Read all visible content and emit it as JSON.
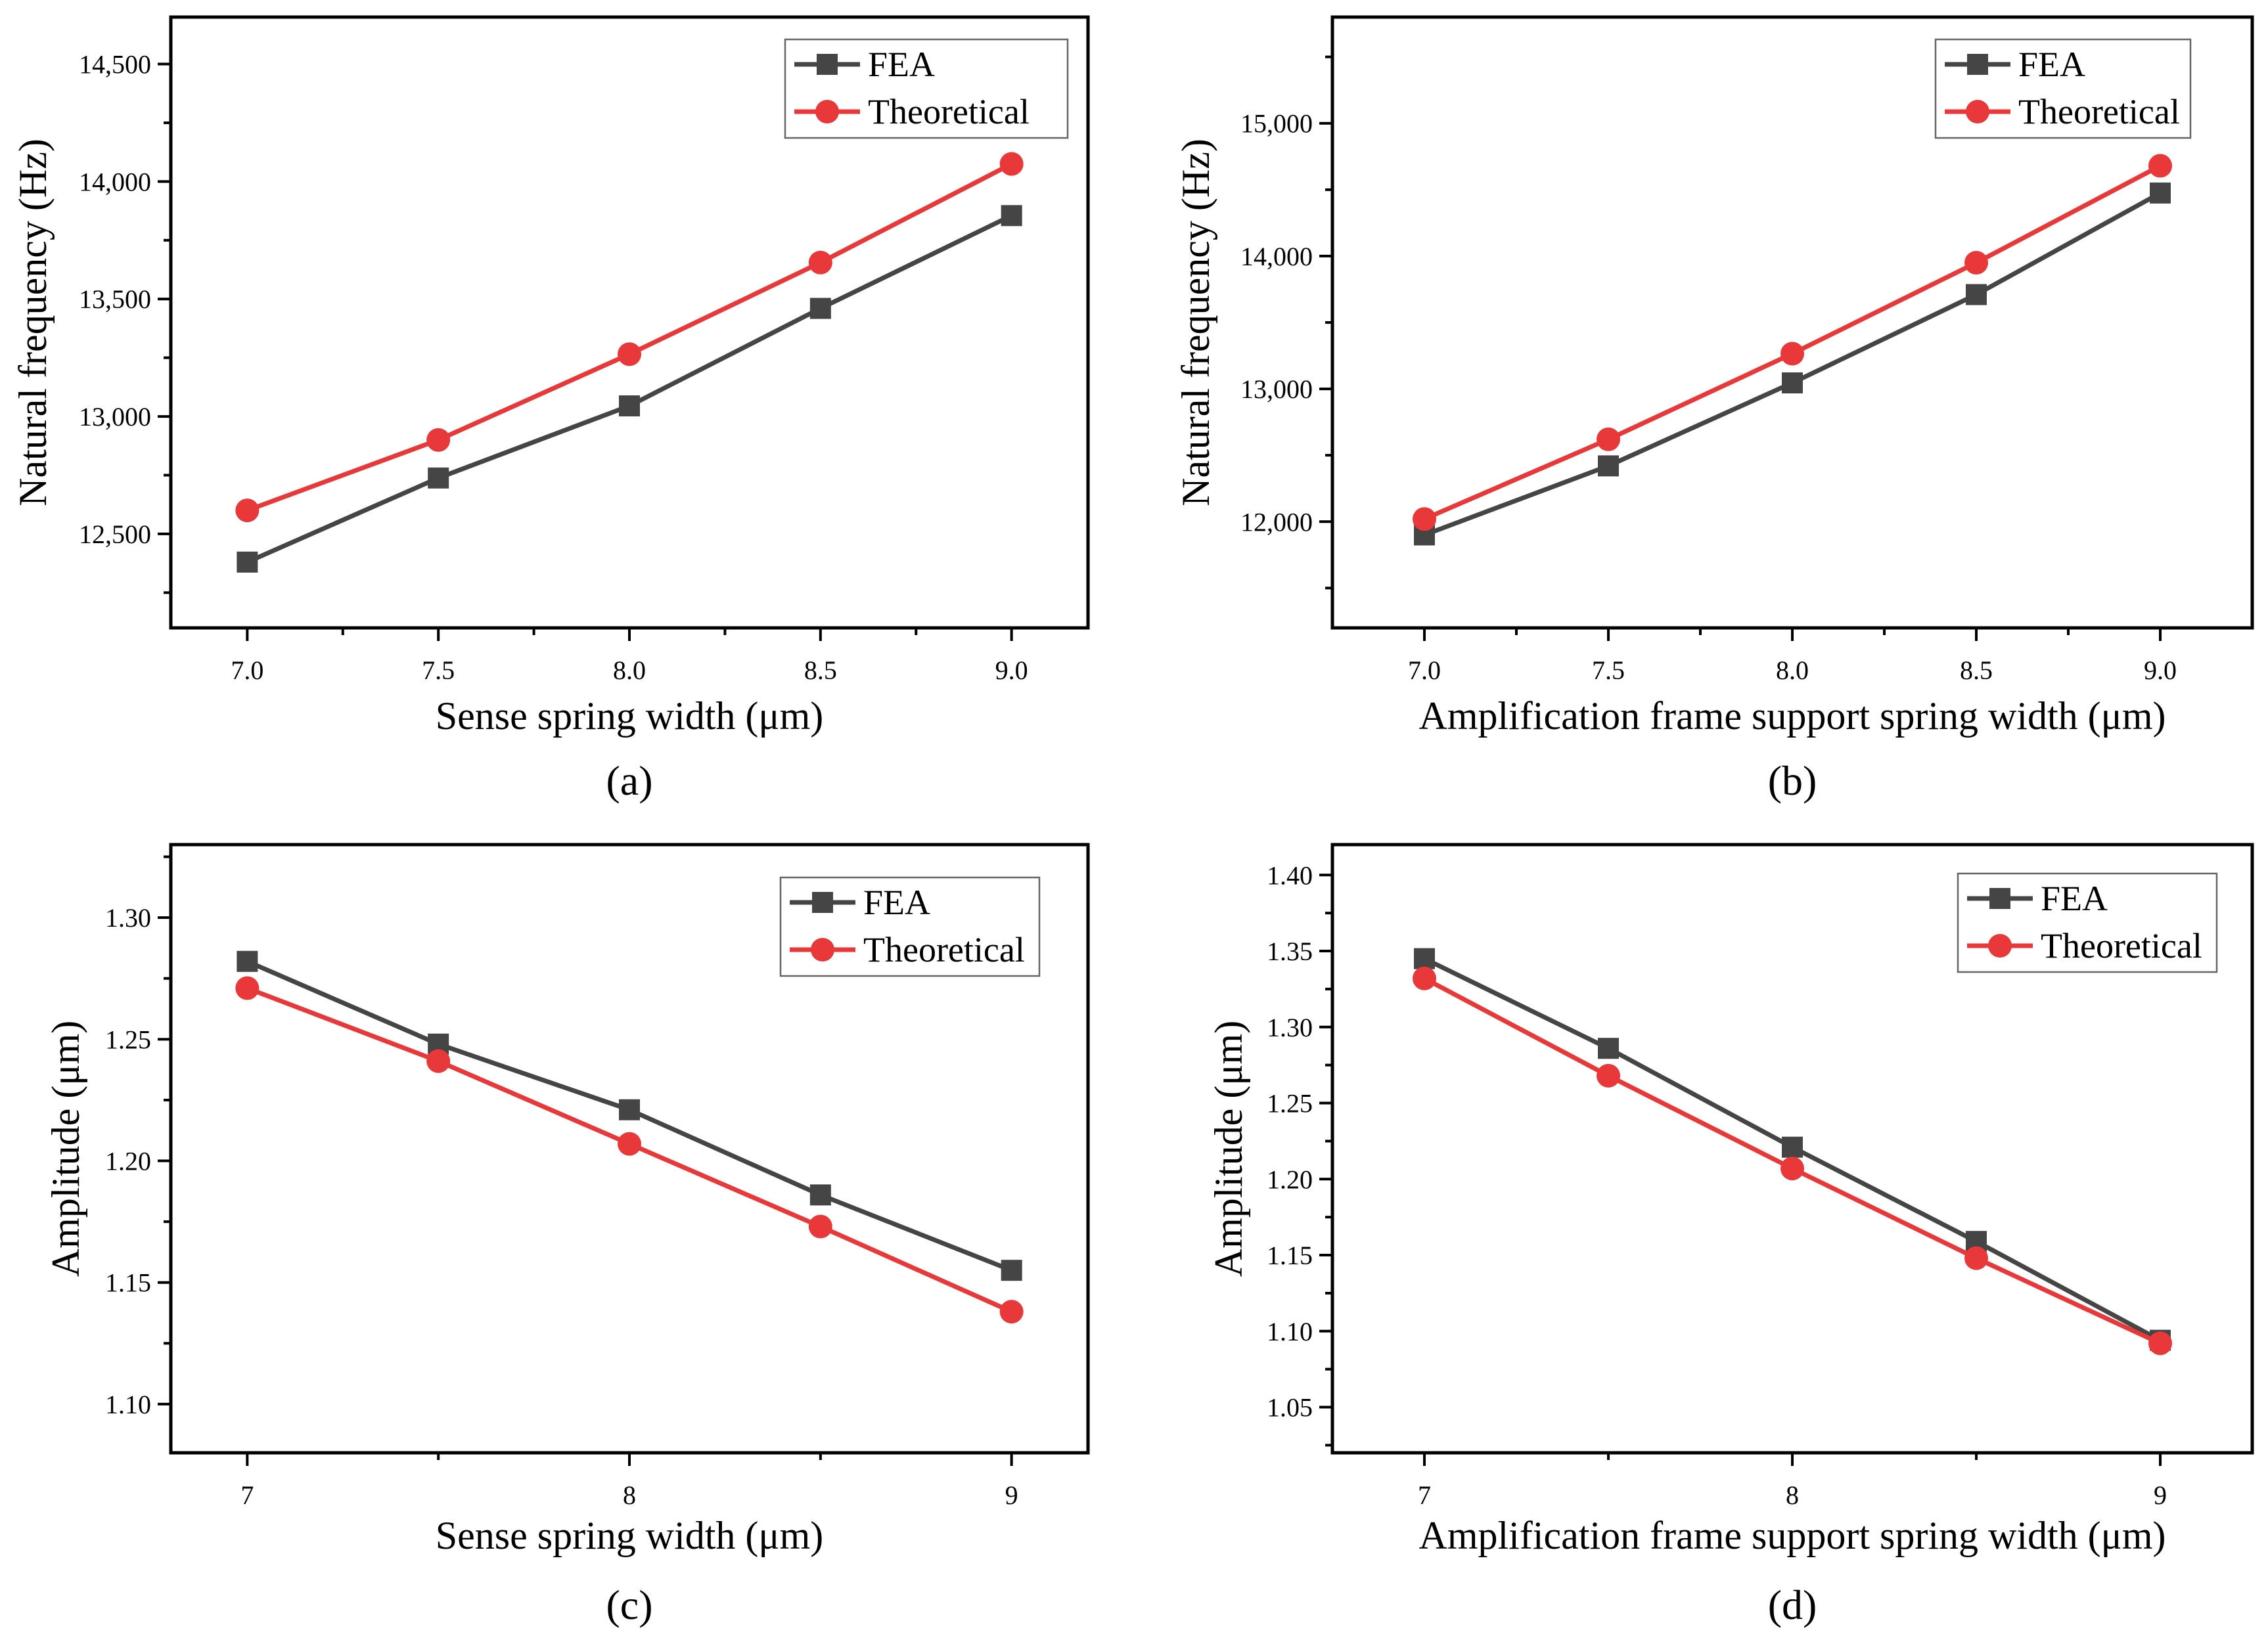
{
  "figure": {
    "series_colors": {
      "FEA": "#454545",
      "Theoretical": "#e8383a"
    }
  },
  "chart_data": [
    {
      "type": "line",
      "panel_label": "(a)",
      "title": "",
      "xlabel": "Sense spring width (μm)",
      "ylabel": "Natural frequency (Hz)",
      "x": [
        7.0,
        7.5,
        8.0,
        8.5,
        9.0
      ],
      "xlim": [
        6.8,
        9.2
      ],
      "ylim": [
        12100,
        14700
      ],
      "xticks": [
        7.0,
        7.5,
        8.0,
        8.5,
        9.0
      ],
      "xtick_labels": [
        "7.0",
        "7.5",
        "8.0",
        "8.5",
        "9.0"
      ],
      "yticks": [
        12500,
        13000,
        13500,
        14000,
        14500
      ],
      "ytick_labels": [
        "12,500",
        "13,000",
        "13,500",
        "14,000",
        "14,500"
      ],
      "series": [
        {
          "name": "FEA",
          "marker": "square",
          "values": [
            12380,
            12738,
            13045,
            13460,
            13855
          ]
        },
        {
          "name": "Theoretical",
          "marker": "circle",
          "values": [
            12600,
            12900,
            13265,
            13655,
            14075
          ]
        }
      ],
      "legend": [
        "FEA",
        "Theoretical"
      ],
      "legend_position": "top-right",
      "grid": false
    },
    {
      "type": "line",
      "panel_label": "(b)",
      "title": "",
      "xlabel": "Amplification frame support spring width (μm)",
      "ylabel": "Natural frequency (Hz)",
      "x": [
        7.0,
        7.5,
        8.0,
        8.5,
        9.0
      ],
      "xlim": [
        6.75,
        9.25
      ],
      "ylim": [
        11200,
        15800
      ],
      "xticks": [
        7.0,
        7.5,
        8.0,
        8.5,
        9.0
      ],
      "xtick_labels": [
        "7.0",
        "7.5",
        "8.0",
        "8.5",
        "9.0"
      ],
      "yticks": [
        12000,
        13000,
        14000,
        15000
      ],
      "ytick_labels": [
        "12,000",
        "13,000",
        "14,000",
        "15,000"
      ],
      "series": [
        {
          "name": "FEA",
          "marker": "square",
          "values": [
            11900,
            12420,
            13045,
            13710,
            14475
          ]
        },
        {
          "name": "Theoretical",
          "marker": "circle",
          "values": [
            12020,
            12620,
            13265,
            13950,
            14680
          ]
        }
      ],
      "legend": [
        "FEA",
        "Theoretical"
      ],
      "legend_position": "top-right",
      "grid": false
    },
    {
      "type": "line",
      "panel_label": "(c)",
      "title": "",
      "xlabel": "Sense spring width (μm)",
      "ylabel": "Amplitude (μm)",
      "x": [
        7.0,
        7.5,
        8.0,
        8.5,
        9.0
      ],
      "xlim": [
        6.8,
        9.2
      ],
      "ylim": [
        1.08,
        1.33
      ],
      "xticks": [
        7,
        8,
        9
      ],
      "xtick_labels": [
        "7",
        "8",
        "9"
      ],
      "yticks": [
        1.1,
        1.15,
        1.2,
        1.25,
        1.3
      ],
      "ytick_labels": [
        "1.10",
        "1.15",
        "1.20",
        "1.25",
        "1.30"
      ],
      "series": [
        {
          "name": "FEA",
          "marker": "square",
          "values": [
            1.282,
            1.248,
            1.221,
            1.186,
            1.155
          ]
        },
        {
          "name": "Theoretical",
          "marker": "circle",
          "values": [
            1.271,
            1.241,
            1.207,
            1.173,
            1.138
          ]
        }
      ],
      "legend": [
        "FEA",
        "Theoretical"
      ],
      "legend_position": "top-right",
      "grid": false
    },
    {
      "type": "line",
      "panel_label": "(d)",
      "title": "",
      "xlabel": "Amplification frame support spring width (μm)",
      "ylabel": "Amplitude (μm)",
      "x": [
        7.0,
        7.5,
        8.0,
        8.5,
        9.0
      ],
      "xlim": [
        6.75,
        9.25
      ],
      "ylim": [
        1.02,
        1.42
      ],
      "xticks": [
        7,
        8,
        9
      ],
      "xtick_labels": [
        "7",
        "8",
        "9"
      ],
      "yticks": [
        1.05,
        1.1,
        1.15,
        1.2,
        1.25,
        1.3,
        1.35,
        1.4
      ],
      "ytick_labels": [
        "1.05",
        "1.10",
        "1.15",
        "1.20",
        "1.25",
        "1.30",
        "1.35",
        "1.40"
      ],
      "series": [
        {
          "name": "FEA",
          "marker": "square",
          "values": [
            1.345,
            1.286,
            1.221,
            1.159,
            1.094
          ]
        },
        {
          "name": "Theoretical",
          "marker": "circle",
          "values": [
            1.332,
            1.268,
            1.207,
            1.148,
            1.092
          ]
        }
      ],
      "legend": [
        "FEA",
        "Theoretical"
      ],
      "legend_position": "top-right",
      "grid": false
    }
  ]
}
